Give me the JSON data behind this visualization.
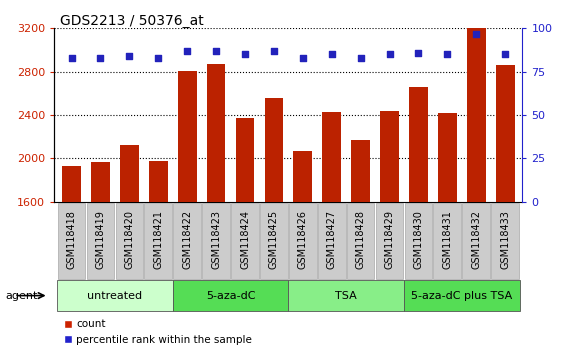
{
  "title": "GDS2213 / 50376_at",
  "samples": [
    "GSM118418",
    "GSM118419",
    "GSM118420",
    "GSM118421",
    "GSM118422",
    "GSM118423",
    "GSM118424",
    "GSM118425",
    "GSM118426",
    "GSM118427",
    "GSM118428",
    "GSM118429",
    "GSM118430",
    "GSM118431",
    "GSM118432",
    "GSM118433"
  ],
  "counts": [
    1930,
    1970,
    2120,
    1980,
    2810,
    2870,
    2370,
    2560,
    2070,
    2430,
    2170,
    2440,
    2660,
    2420,
    3200,
    2860
  ],
  "percentiles": [
    83,
    83,
    84,
    83,
    87,
    87,
    85,
    87,
    83,
    85,
    83,
    85,
    86,
    85,
    97,
    85
  ],
  "groups": [
    {
      "label": "untreated",
      "start": 0,
      "end": 3,
      "color": "#ccffcc"
    },
    {
      "label": "5-aza-dC",
      "start": 4,
      "end": 7,
      "color": "#55dd55"
    },
    {
      "label": "TSA",
      "start": 8,
      "end": 11,
      "color": "#88ee88"
    },
    {
      "label": "5-aza-dC plus TSA",
      "start": 12,
      "end": 15,
      "color": "#55dd55"
    }
  ],
  "ylim_left": [
    1600,
    3200
  ],
  "ylim_right": [
    0,
    100
  ],
  "yticks_left": [
    1600,
    2000,
    2400,
    2800,
    3200
  ],
  "yticks_right": [
    0,
    25,
    50,
    75,
    100
  ],
  "bar_color": "#bb2200",
  "dot_color": "#2222bb",
  "bar_bottom": 1600,
  "bar_color_label": "#cc2200",
  "dot_color_label": "#2222cc",
  "legend_count_label": "count",
  "legend_pct_label": "percentile rank within the sample",
  "agent_label": "agent",
  "tick_box_color": "#cccccc",
  "grid_color": "#000000",
  "title_fontsize": 10,
  "tick_fontsize": 7,
  "group_fontsize": 8,
  "legend_fontsize": 7.5,
  "ytick_fontsize": 8
}
